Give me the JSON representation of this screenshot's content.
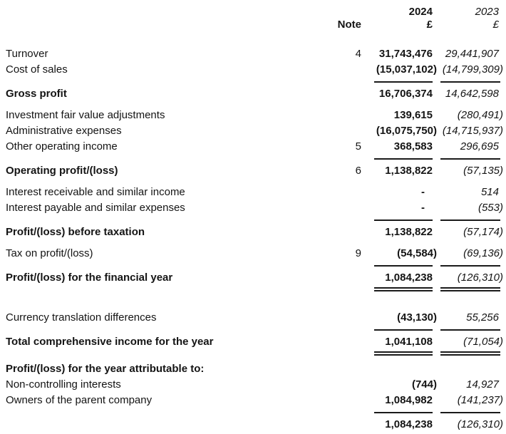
{
  "document": {
    "columns": {
      "note_label": "Note",
      "year_current": "2024",
      "year_prior": "2023",
      "currency_current": "£",
      "currency_prior": "£"
    },
    "rows": [
      {
        "kind": "item",
        "label": "Turnover",
        "note": "4",
        "v1": "31,743,476",
        "v2": "29,441,907"
      },
      {
        "kind": "item",
        "label": "Cost of sales",
        "v1": "(15,037,102)",
        "v2": "(14,799,309)"
      },
      {
        "kind": "rule"
      },
      {
        "kind": "total",
        "label": "Gross profit",
        "v1": "16,706,374",
        "v2": "14,642,598"
      },
      {
        "kind": "item",
        "label": "Investment fair value adjustments",
        "v1": "139,615",
        "v2": "(280,491)"
      },
      {
        "kind": "item",
        "label": "Administrative expenses",
        "v1": "(16,075,750)",
        "v2": "(14,715,937)"
      },
      {
        "kind": "item",
        "label": "Other operating income",
        "note": "5",
        "v1": "368,583",
        "v2": "296,695"
      },
      {
        "kind": "rule"
      },
      {
        "kind": "total",
        "label": "Operating profit/(loss)",
        "note": "6",
        "v1": "1,138,822",
        "v2": "(57,135)"
      },
      {
        "kind": "item",
        "label": "Interest receivable and similar income",
        "v1": "-",
        "v2": "514"
      },
      {
        "kind": "item",
        "label": "Interest payable and similar expenses",
        "v1": "-",
        "v2": "(553)"
      },
      {
        "kind": "rule"
      },
      {
        "kind": "total",
        "label": "Profit/(loss) before taxation",
        "v1": "1,138,822",
        "v2": "(57,174)"
      },
      {
        "kind": "item",
        "label": "Tax on profit/(loss)",
        "note": "9",
        "v1": "(54,584)",
        "v2": "(69,136)"
      },
      {
        "kind": "rule"
      },
      {
        "kind": "total",
        "label": "Profit/(loss) for the financial year",
        "v1": "1,084,238",
        "v2": "(126,310)"
      },
      {
        "kind": "rule2"
      },
      {
        "kind": "spacer"
      },
      {
        "kind": "item",
        "label": "Currency translation differences",
        "v1": "(43,130)",
        "v2": "55,256"
      },
      {
        "kind": "rule"
      },
      {
        "kind": "total",
        "label": "Total comprehensive income for the year",
        "v1": "1,041,108",
        "v2": "(71,054)"
      },
      {
        "kind": "rule2"
      },
      {
        "kind": "heading",
        "label": "Profit/(loss) for the year attributable to:"
      },
      {
        "kind": "item",
        "label": "Non-controlling interests",
        "v1": "(744)",
        "v2": "14,927"
      },
      {
        "kind": "item",
        "label": "Owners of the parent company",
        "v1": "1,084,982",
        "v2": "(141,237)"
      },
      {
        "kind": "rule"
      },
      {
        "kind": "total",
        "label": "",
        "v1": "1,084,238",
        "v2": "(126,310)"
      }
    ]
  }
}
